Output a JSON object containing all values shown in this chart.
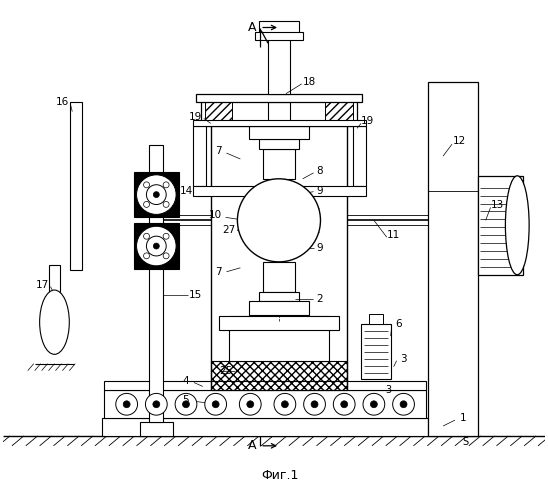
{
  "title": "Фиг.1",
  "bg_color": "#ffffff",
  "figsize": [
    5.48,
    5.0
  ],
  "dpi": 100,
  "xlim": [
    0,
    548
  ],
  "ylim": [
    0,
    500
  ]
}
